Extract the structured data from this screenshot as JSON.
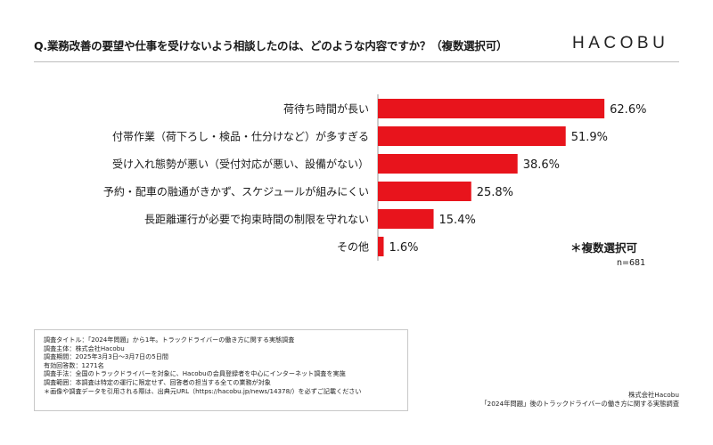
{
  "header": {
    "question": "Q.業務改善の要望や仕事を受けないよう相談したのは、どのような内容ですか？（複数選択可）",
    "logo": "HACOBU"
  },
  "chart_data": {
    "type": "bar",
    "orientation": "horizontal",
    "categories": [
      "荷待ち時間が長い",
      "付帯作業（荷下ろし・検品・仕分けなど）が多すぎる",
      "受け入れ態勢が悪い（受付対応が悪い、設備がない）",
      "予約・配車の融通がきかず、スケジュールが組みにくい",
      "長距離運行が必要で拘束時間の制限を守れない",
      "その他"
    ],
    "values": [
      62.6,
      51.9,
      38.6,
      25.8,
      15.4,
      1.6
    ],
    "value_labels": [
      "62.6%",
      "51.9%",
      "38.6%",
      "25.8%",
      "15.4%",
      "1.6%"
    ],
    "unit": "%",
    "xlim": [
      0,
      100
    ],
    "grid": false,
    "bar_color": "#e8141c"
  },
  "notes": {
    "multi_select": "＊複数選択可",
    "sample_size": "n=681"
  },
  "survey_info": [
    "調査タイトル：「2024年問題」から1年。トラックドライバーの働き方に関する実態調査",
    "調査主体：株式会社Hacobu",
    "調査期間：2025年3月3日～3月7日の5日間",
    "有効回答数：1271名",
    "調査手法：全国のトラックドライバーを対象に、Hacobuの会員登録者を中心にインターネット調査を実施",
    "調査範囲：本調査は特定の運行に限定せず、回答者の担当する全ての業務が対象",
    "＊画像や調査データを引用される際は、出典元URL（https://hacobu.jp/news/14378/）を必ずご記載ください"
  ],
  "footer": {
    "company": "株式会社Hacobu",
    "report": "「2024年問題」後のトラックドライバーの働き方に関する実態調査"
  }
}
